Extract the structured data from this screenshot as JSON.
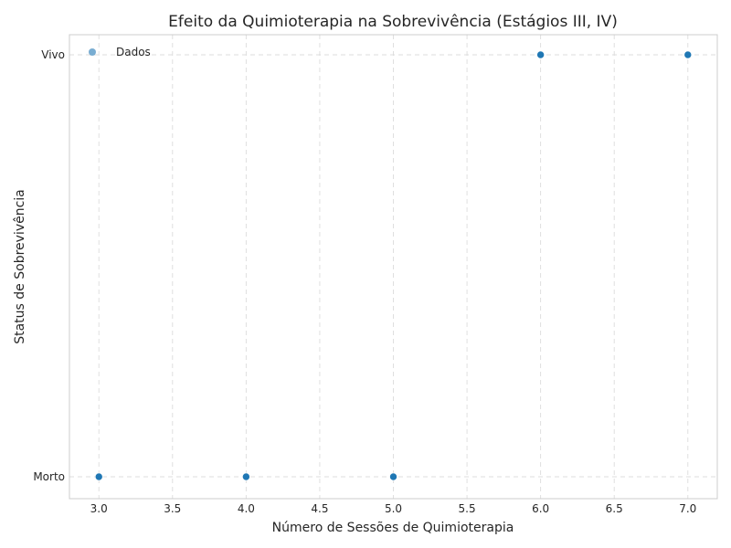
{
  "chart_data": {
    "type": "scatter",
    "title": "Efeito da Quimioterapia na Sobrevivência (Estágios III, IV)",
    "xlabel": "Número de Sessões de Quimioterapia",
    "ylabel": "Status de Sobrevivência",
    "xlim": [
      2.8,
      7.2
    ],
    "x_ticks": [
      "3.0",
      "3.5",
      "4.0",
      "4.5",
      "5.0",
      "5.5",
      "6.0",
      "6.5",
      "7.0"
    ],
    "y_categories": [
      "Morto",
      "Vivo"
    ],
    "grid": true,
    "legend_position": "top-left",
    "series": [
      {
        "name": "Dados",
        "color": "#1f77b4",
        "points": [
          {
            "x": 3,
            "y": "Morto"
          },
          {
            "x": 4,
            "y": "Morto"
          },
          {
            "x": 5,
            "y": "Morto"
          },
          {
            "x": 6,
            "y": "Vivo"
          },
          {
            "x": 7,
            "y": "Vivo"
          }
        ]
      }
    ]
  }
}
